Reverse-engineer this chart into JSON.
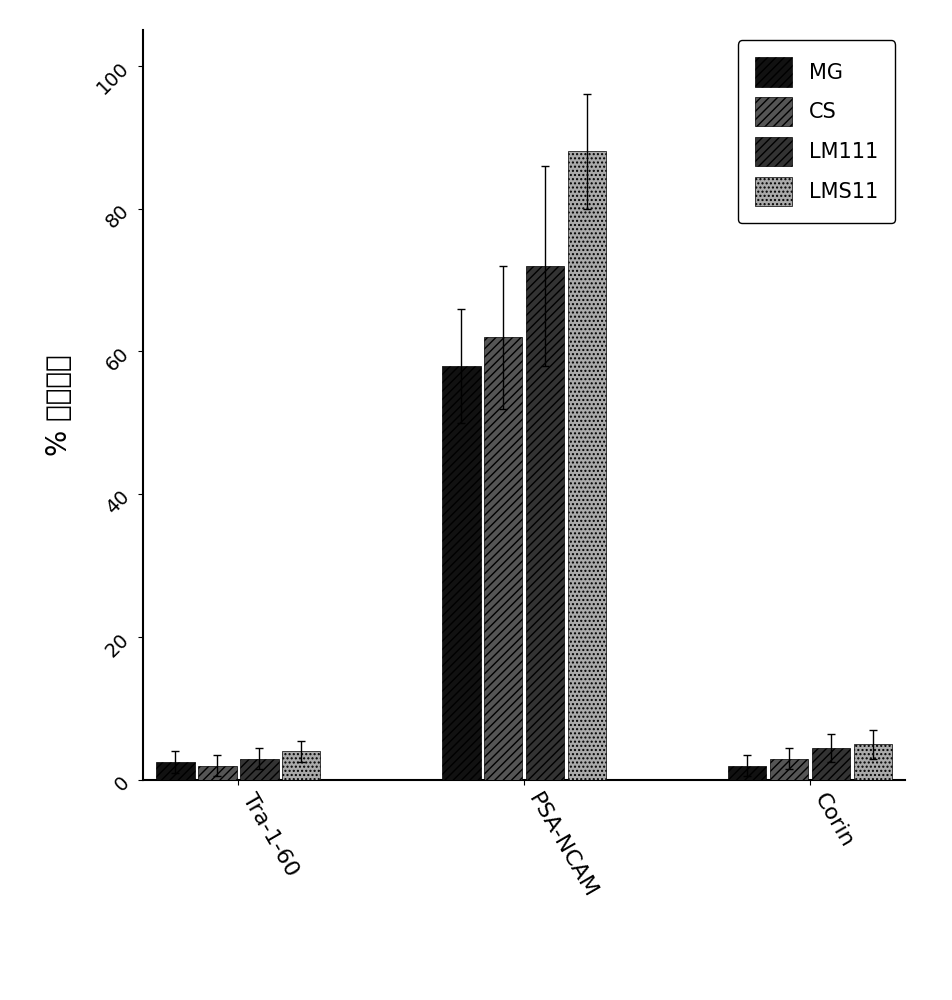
{
  "groups": [
    "Tra-1-60",
    "PSA-NCAM",
    "Corin"
  ],
  "series": [
    "MG",
    "CS",
    "LM111",
    "LMS11"
  ],
  "values": [
    [
      2.5,
      2.0,
      3.0,
      4.0
    ],
    [
      58.0,
      62.0,
      72.0,
      88.0
    ],
    [
      2.0,
      3.0,
      4.5,
      5.0
    ]
  ],
  "errors": [
    [
      1.5,
      1.5,
      1.5,
      1.5
    ],
    [
      8.0,
      10.0,
      14.0,
      8.0
    ],
    [
      1.5,
      1.5,
      2.0,
      2.0
    ]
  ],
  "ylabel": "% 阳性细胞",
  "ylim": [
    0,
    105
  ],
  "yticks": [
    0,
    20,
    40,
    60,
    80,
    100
  ],
  "bar_width": 0.22,
  "colors": [
    "#111111",
    "#555555",
    "#333333",
    "#aaaaaa"
  ],
  "hatches": [
    "////",
    "////",
    "////",
    "...."
  ],
  "background_color": "#ffffff",
  "hatch_colors": [
    "white",
    "white",
    "white",
    "white"
  ]
}
